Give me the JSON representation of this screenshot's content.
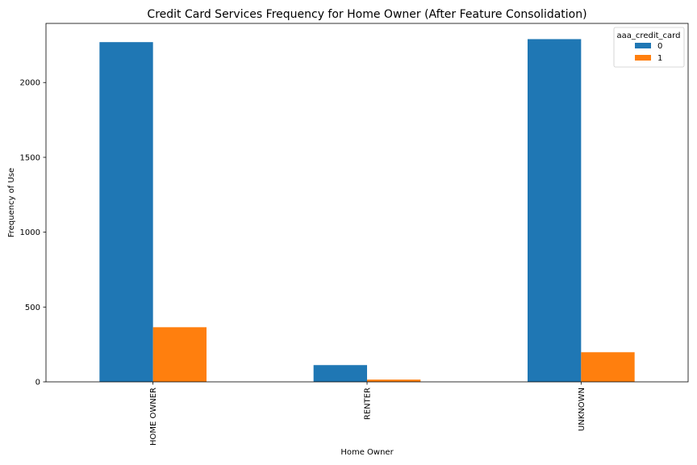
{
  "chart_data": {
    "type": "bar",
    "title": "Credit Card Services Frequency for Home Owner (After Feature Consolidation)",
    "xlabel": "Home Owner",
    "ylabel": "Frequency of Use",
    "categories": [
      "HOME OWNER",
      "RENTER",
      "UNKNOWN"
    ],
    "series": [
      {
        "name": "0",
        "color": "#1f77b4",
        "values": [
          2270,
          112,
          2290
        ]
      },
      {
        "name": "1",
        "color": "#ff7f0e",
        "values": [
          365,
          15,
          198
        ]
      }
    ],
    "ylim": [
      0,
      2395
    ],
    "yticks": [
      0,
      500,
      1000,
      1500,
      2000
    ],
    "ytick_labels": [
      "0",
      "500",
      "1000",
      "1500",
      "2000"
    ],
    "legend": {
      "title": "aaa_credit_card",
      "placement": "top-right"
    },
    "grid": false
  }
}
